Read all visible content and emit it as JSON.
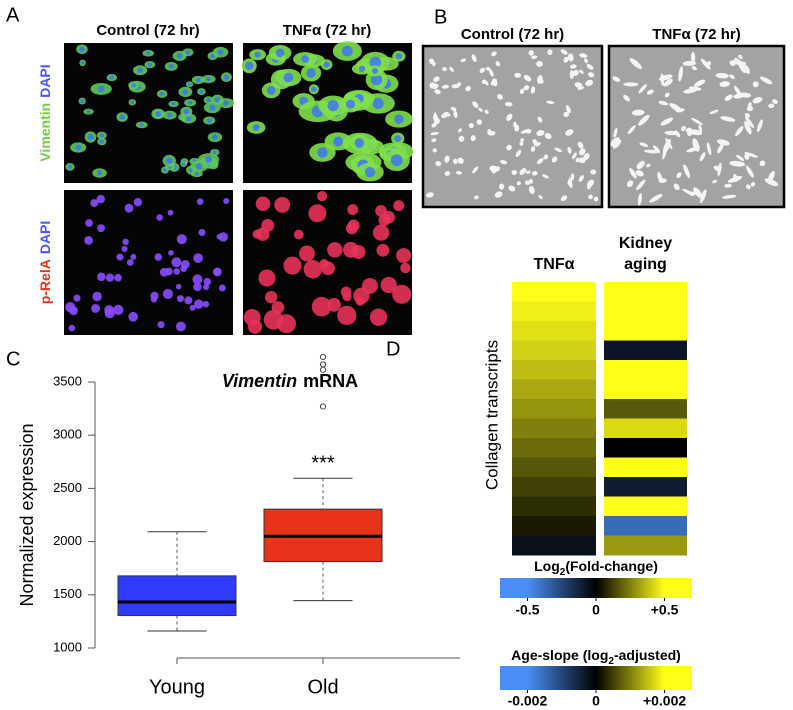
{
  "panel_a": {
    "label": "A",
    "columns": [
      "Control (72 hr)",
      "TNFα (72 hr)"
    ],
    "rows": [
      {
        "parts": [
          "Vimentin",
          "DAPI"
        ],
        "colors": [
          "#6fd23a",
          "#4b55ff"
        ]
      },
      {
        "parts": [
          "p-RelA",
          "DAPI"
        ],
        "colors": [
          "#e8321a",
          "#4b55ff"
        ]
      }
    ]
  },
  "panel_b": {
    "label": "B",
    "columns": [
      "Control (72 hr)",
      "TNFα (72 hr)"
    ]
  },
  "chart_data": [
    {
      "type": "box",
      "label": "C",
      "title": [
        "Vimentin",
        "mRNA"
      ],
      "ylabel": "Normalized expression",
      "categories": [
        "Young",
        "Old"
      ],
      "boxes": [
        {
          "color": "#2f3cff",
          "whislo": 1160,
          "q1": 1305,
          "med": 1432,
          "q3": 1678,
          "whishi": 2093,
          "fliers": []
        },
        {
          "color": "#e8321a",
          "whislo": 1445,
          "q1": 1812,
          "med": 2050,
          "q3": 2305,
          "whishi": 2595,
          "fliers": [
            3270,
            3615,
            3665,
            3735
          ]
        }
      ],
      "annotation": "***",
      "ylim": [
        1000,
        3500
      ],
      "yticks": [
        1000,
        1500,
        2000,
        2500,
        3000,
        3500
      ]
    },
    {
      "type": "heatmap",
      "label": "D",
      "ylabel": "Collagen transcripts",
      "columns": [
        {
          "name": [
            "TNFα"
          ],
          "scale": 0,
          "values": [
            0.5,
            0.47,
            0.44,
            0.41,
            0.37,
            0.33,
            0.29,
            0.25,
            0.21,
            0.17,
            0.13,
            0.09,
            0.05,
            -0.06
          ]
        },
        {
          "name": [
            "Kidney",
            "aging"
          ],
          "scale": 1,
          "values": [
            0.002,
            0.002,
            0.002,
            -0.0003,
            0.002,
            0.002,
            0.0007,
            0.0017,
            0.0,
            0.002,
            -0.0004,
            0.002,
            -0.0015,
            0.0012
          ]
        }
      ],
      "scales": [
        {
          "title": [
            "Log",
            "2",
            "(Fold-change)"
          ],
          "lim": [
            -0.7,
            0.7
          ],
          "colors": [
            "#4a8ff5",
            "#000000",
            "#ffff1a"
          ],
          "ticks": [
            -0.5,
            0,
            {
              "value": 0.5,
              "label": "+0.5"
            }
          ]
        },
        {
          "title": [
            "Age-slope (log",
            "2",
            "-adjusted)"
          ],
          "lim": [
            -0.0028,
            0.0028
          ],
          "colors": [
            "#4a8ff5",
            "#000000",
            "#ffff1a"
          ],
          "ticks": [
            -0.002,
            0,
            {
              "value": 0.002,
              "label": "+0.002"
            }
          ]
        }
      ]
    }
  ]
}
